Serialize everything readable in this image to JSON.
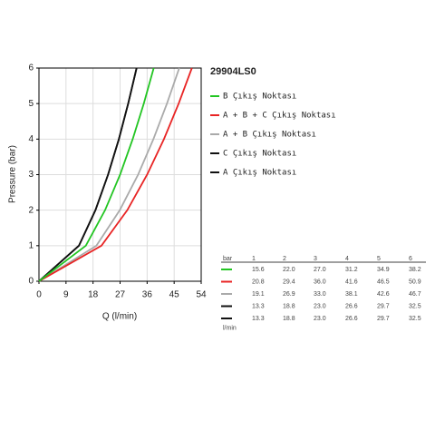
{
  "chart_data": {
    "type": "line",
    "title": "29904LS0",
    "xlabel": "Q (l/min)",
    "ylabel": "Pressure (bar)",
    "xlim": [
      0,
      54
    ],
    "xticks": [
      0,
      9,
      18,
      27,
      36,
      45,
      54
    ],
    "ylim": [
      0,
      6
    ],
    "yticks": [
      0,
      1,
      2,
      3,
      4,
      5,
      6
    ],
    "grid": true,
    "series": [
      {
        "name": "B Çıkış Noktası",
        "color": "#22c522",
        "x": [
          0,
          15.6,
          22.0,
          27.0,
          31.2,
          34.9,
          38.2
        ],
        "values": [
          0,
          1,
          2,
          3,
          4,
          5,
          6
        ]
      },
      {
        "name": "A + B + C Çıkış Noktası",
        "color": "#e82424",
        "x": [
          0,
          20.8,
          29.4,
          36.0,
          41.6,
          46.5,
          50.9
        ],
        "values": [
          0,
          1,
          2,
          3,
          4,
          5,
          6
        ]
      },
      {
        "name": "A + B Çıkış Noktası",
        "color": "#aaaaaa",
        "x": [
          0,
          19.1,
          26.9,
          33.0,
          38.1,
          42.6,
          46.7
        ],
        "values": [
          0,
          1,
          2,
          3,
          4,
          5,
          6
        ]
      },
      {
        "name": "C Çıkış Noktası",
        "color": "#111111",
        "x": [
          0,
          13.3,
          18.8,
          23.0,
          26.6,
          29.7,
          32.5
        ],
        "values": [
          0,
          1,
          2,
          3,
          4,
          5,
          6
        ]
      },
      {
        "name": "A Çıkış Noktası",
        "color": "#111111",
        "x": [
          0,
          13.3,
          18.8,
          23.0,
          26.6,
          29.7,
          32.5
        ],
        "values": [
          0,
          1,
          2,
          3,
          4,
          5,
          6
        ]
      }
    ]
  },
  "table": {
    "header": [
      "bar",
      "1",
      "2",
      "3",
      "4",
      "5",
      "6"
    ],
    "rows": [
      [
        "15.6",
        "22.0",
        "27.0",
        "31.2",
        "34.9",
        "38.2"
      ],
      [
        "20.8",
        "29.4",
        "36.0",
        "41.6",
        "46.5",
        "50.9"
      ],
      [
        "19.1",
        "26.9",
        "33.0",
        "38.1",
        "42.6",
        "46.7"
      ],
      [
        "13.3",
        "18.8",
        "23.0",
        "26.6",
        "29.7",
        "32.5"
      ],
      [
        "13.3",
        "18.8",
        "23.0",
        "26.6",
        "29.7",
        "32.5"
      ]
    ],
    "footer": "l/min"
  }
}
